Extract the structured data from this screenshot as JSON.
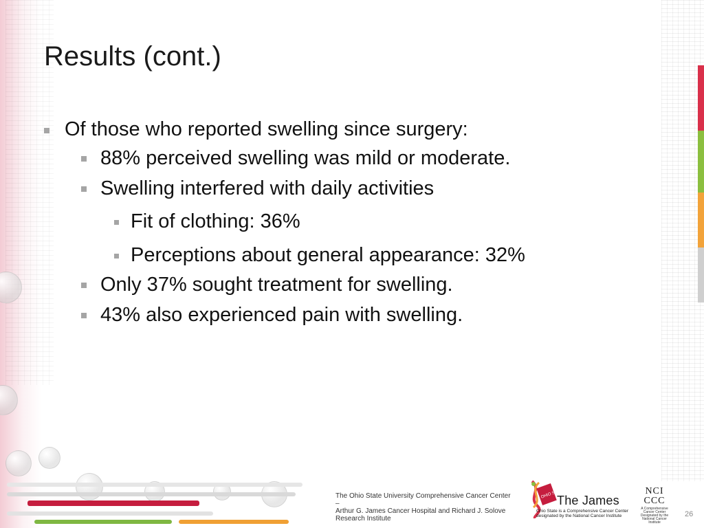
{
  "slide": {
    "title": "Results (cont.)",
    "bullets": [
      {
        "level": 1,
        "text": "Of those who reported swelling since surgery:"
      },
      {
        "level": 2,
        "text": "88% perceived swelling was mild or moderate."
      },
      {
        "level": 2,
        "text": "Swelling interfered with daily activities"
      },
      {
        "level": 3,
        "text": "Fit of clothing: 36%"
      },
      {
        "level": 3,
        "text": "Perceptions about general appearance: 32%"
      },
      {
        "level": 2,
        "text": "Only 37% sought treatment for swelling."
      },
      {
        "level": 2,
        "text": "43% also experienced pain with swelling."
      }
    ],
    "footer": {
      "line1": "The Ohio State University Comprehensive Cancer Center –",
      "line2": "Arthur G. James Cancer Hospital and Richard J. Solove",
      "line3": "Research Institute"
    },
    "logo": {
      "ohio_state": "OHIO STATE UNIVERSITY",
      "name": "The James",
      "subtitle1": "Ohio State is a Comprehensive Cancer Center",
      "subtitle2": "designated by the National Cancer Institute",
      "nci_top": "NCI",
      "nci_bottom": "CCC",
      "nci_caption": "A Comprehensive Cancer Center Designated by the National Cancer Institute"
    },
    "page_number": "26"
  },
  "colors": {
    "accent_red": "#c51d3e",
    "accent_green": "#8bbf3f",
    "accent_orange": "#f2a33a",
    "bullet_square": "#a5a5a5"
  }
}
